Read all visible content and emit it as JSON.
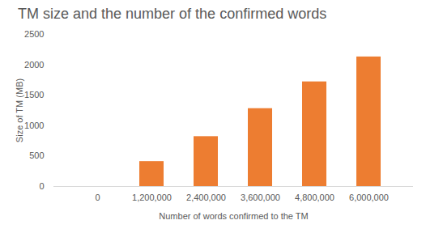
{
  "chart_data": {
    "type": "bar",
    "title": "TM size and the number of the confirmed words",
    "xlabel": "Number of words confirmed to the TM",
    "ylabel": "Size of TM (MB)",
    "categories": [
      "0",
      "1,200,000",
      "2,400,000",
      "3,600,000",
      "4,800,000",
      "6,000,000"
    ],
    "values": [
      0,
      410,
      820,
      1280,
      1720,
      2130
    ],
    "color": "#ed7d31",
    "ylim": [
      0,
      2500
    ],
    "yticks": [
      0,
      500,
      1000,
      1500,
      2000,
      2500
    ],
    "grid": false
  }
}
